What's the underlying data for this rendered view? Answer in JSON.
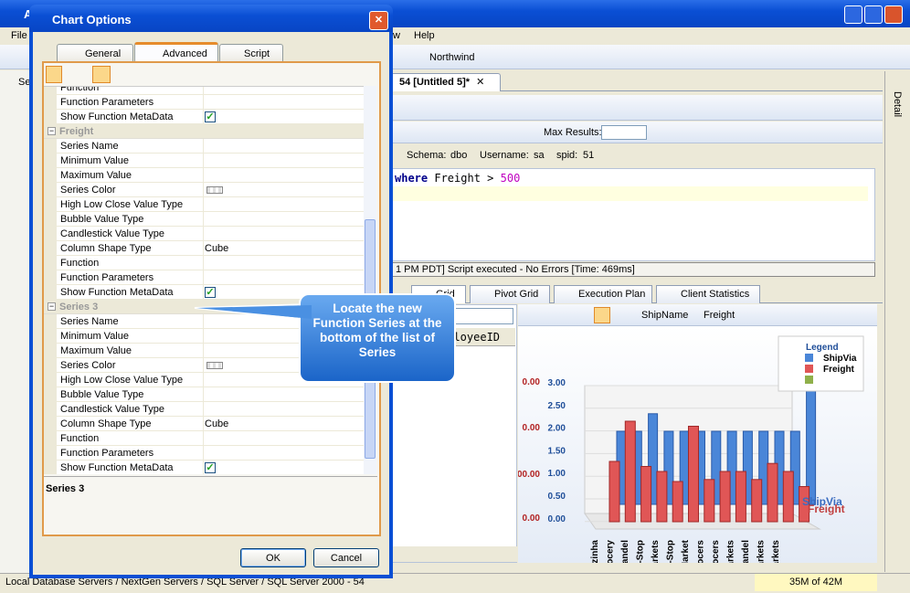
{
  "main_window": {
    "title": "A",
    "menu": [
      "File",
      "w",
      "Help"
    ],
    "database": "Northwind",
    "side_tab": "Se",
    "document_tab": "54 [Untitled 5]*",
    "max_results_label": "Max Results:",
    "connection": {
      "schema_label": "Schema:",
      "schema": "dbo",
      "username_label": "Username:",
      "username": "sa",
      "spid_label": "spid:",
      "spid": "51"
    },
    "sql": {
      "keyword": "where",
      "column": "Freight",
      "operator": ">",
      "value": "500"
    },
    "message": "1 PM PDT] Script executed - No Errors [Time: 469ms]",
    "result_tabs": [
      "Grid",
      "Pivot Grid",
      "Execution Plan",
      "Client Statistics"
    ],
    "grid_column": "mployeeID",
    "chart": {
      "fields": [
        "ShipName",
        "Freight"
      ],
      "legend_title": "Legend",
      "legend": [
        "ShipVia",
        "Freight"
      ],
      "right_axis": [
        "3.00",
        "2.50",
        "2.00",
        "1.50",
        "1.00",
        "0.50",
        "0.00"
      ],
      "left_axis": [
        "0.00",
        "0.00",
        "00.00",
        "0.00"
      ],
      "watermark": [
        "ShipVia",
        "Freight"
      ],
      "categories": [
        "azinha",
        "ocery",
        "landel",
        "-Stop",
        "arkets",
        "-Stop",
        "Market",
        "ocers",
        "ocers",
        "arkets",
        "landel",
        "arkets",
        "arkets"
      ]
    },
    "status_path": "Local Database Servers / NextGen Servers / SQL Server / SQL Server 2000 - 54",
    "memory": "35M of 42M",
    "detail_panel": "Detail"
  },
  "dialog": {
    "title": "Chart Options",
    "tabs": [
      "General",
      "Advanced",
      "Script"
    ],
    "properties": [
      {
        "name": "Function"
      },
      {
        "name": "Function Parameters"
      },
      {
        "name": "Show Function MetaData",
        "checked": true
      },
      {
        "section": "Freight"
      },
      {
        "name": "Series Name"
      },
      {
        "name": "Minimum Value"
      },
      {
        "name": "Maximum Value"
      },
      {
        "name": "Series Color",
        "swatch": true
      },
      {
        "name": "High Low Close Value Type"
      },
      {
        "name": "Bubble Value Type"
      },
      {
        "name": "Candlestick Value Type"
      },
      {
        "name": "Column Shape Type",
        "value": "Cube"
      },
      {
        "name": "Function"
      },
      {
        "name": "Function Parameters"
      },
      {
        "name": "Show Function MetaData",
        "checked": true
      },
      {
        "section": "Series 3"
      },
      {
        "name": "Series Name"
      },
      {
        "name": "Minimum Value"
      },
      {
        "name": "Maximum Value"
      },
      {
        "name": "Series Color",
        "swatch": true
      },
      {
        "name": "High Low Close Value Type"
      },
      {
        "name": "Bubble Value Type"
      },
      {
        "name": "Candlestick Value Type"
      },
      {
        "name": "Column Shape Type",
        "value": "Cube"
      },
      {
        "name": "Function"
      },
      {
        "name": "Function Parameters"
      },
      {
        "name": "Show Function MetaData",
        "checked": true
      }
    ],
    "description": "Series 3",
    "buttons": [
      "OK",
      "Cancel"
    ]
  },
  "callout": "Locate the new Function Series at the bottom of the list of Series"
}
